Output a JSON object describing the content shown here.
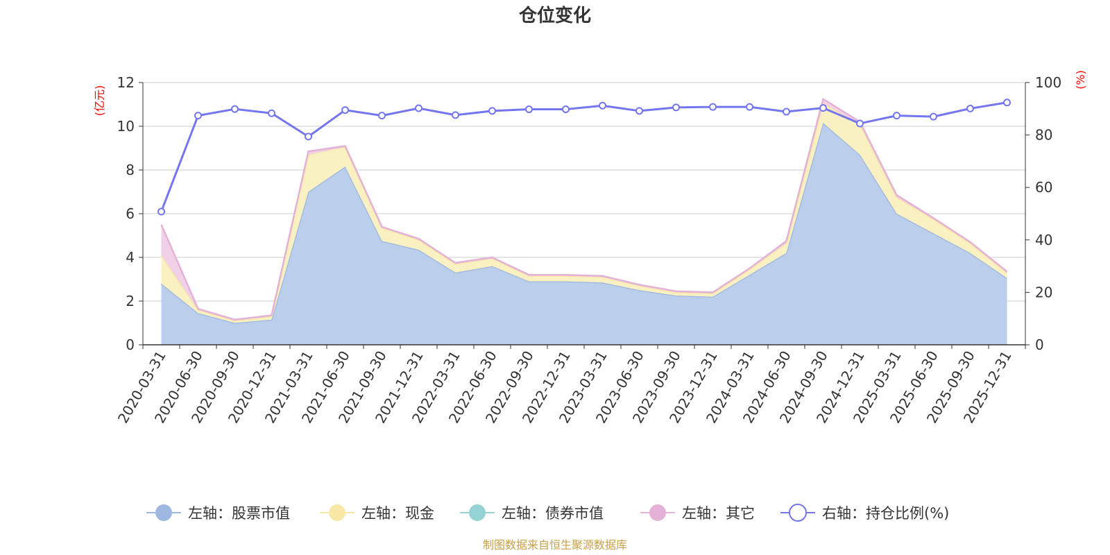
{
  "chart_data": {
    "type": "area",
    "title": "仓位变化",
    "source_note": "制图数据来自恒生聚源数据库",
    "left_axis": {
      "unit": "(亿元)",
      "min": 0,
      "max": 12,
      "ticks": [
        0,
        2,
        4,
        6,
        8,
        10,
        12
      ]
    },
    "right_axis": {
      "unit": "(%)",
      "min": 0,
      "max": 100,
      "ticks": [
        0,
        20,
        40,
        60,
        80,
        100
      ]
    },
    "grid": true,
    "legend_position": "bottom",
    "categories": [
      "2020-03-31",
      "2020-06-30",
      "2020-09-30",
      "2020-12-31",
      "2021-03-31",
      "2021-06-30",
      "2021-09-30",
      "2021-12-31",
      "2022-03-31",
      "2022-06-30",
      "2022-09-30",
      "2022-12-31",
      "2023-03-31",
      "2023-06-30",
      "2023-09-30",
      "2023-12-31",
      "2024-03-31",
      "2024-06-30",
      "2024-09-30",
      "2024-12-31",
      "2025-03-31",
      "2025-06-30",
      "2025-09-30",
      "2025-12-31"
    ],
    "series": [
      {
        "name": "左轴：股票市值",
        "axis": "left",
        "kind": "stacked-area",
        "color": "#9db7e0",
        "fill": "#b7cbea",
        "values": [
          2.8,
          1.45,
          1.0,
          1.15,
          7.0,
          8.15,
          4.75,
          4.35,
          3.3,
          3.6,
          2.9,
          2.9,
          2.85,
          2.5,
          2.25,
          2.2,
          3.2,
          4.2,
          10.15,
          8.7,
          6.0,
          5.1,
          4.2,
          3.05
        ]
      },
      {
        "name": "左轴：现金",
        "axis": "left",
        "kind": "stacked-area",
        "color": "#f7e8a6",
        "fill": "#faf0c0",
        "values": [
          1.3,
          0.15,
          0.1,
          0.15,
          1.7,
          0.9,
          0.6,
          0.45,
          0.4,
          0.35,
          0.25,
          0.25,
          0.25,
          0.2,
          0.15,
          0.15,
          0.25,
          0.45,
          0.9,
          1.4,
          0.75,
          0.65,
          0.45,
          0.25
        ]
      },
      {
        "name": "左轴：债券市值",
        "axis": "left",
        "kind": "stacked-area",
        "color": "#94d2d3",
        "fill": "#aedfdf",
        "values": [
          0,
          0,
          0,
          0,
          0,
          0,
          0,
          0,
          0,
          0,
          0,
          0,
          0,
          0,
          0,
          0,
          0,
          0,
          0,
          0,
          0,
          0,
          0,
          0
        ]
      },
      {
        "name": "左轴：其它",
        "axis": "left",
        "kind": "stacked-area",
        "color": "#e3b2d6",
        "fill": "#efcfe6",
        "values": [
          1.4,
          0.05,
          0.05,
          0.05,
          0.15,
          0.05,
          0.05,
          0.05,
          0.05,
          0.05,
          0.05,
          0.05,
          0.05,
          0.05,
          0.05,
          0.05,
          0.05,
          0.1,
          0.2,
          0.1,
          0.1,
          0.05,
          0.05,
          0.05
        ]
      },
      {
        "name": "右轴：持仓比例(%)",
        "axis": "right",
        "kind": "line",
        "color": "#7476f0",
        "values": [
          50.8,
          87.4,
          89.9,
          88.3,
          79.4,
          89.5,
          87.4,
          90.2,
          87.6,
          89.2,
          89.8,
          89.8,
          91.2,
          89.2,
          90.5,
          90.7,
          90.7,
          88.9,
          90.3,
          84.4,
          87.4,
          87.0,
          90.1,
          92.4
        ]
      }
    ]
  }
}
